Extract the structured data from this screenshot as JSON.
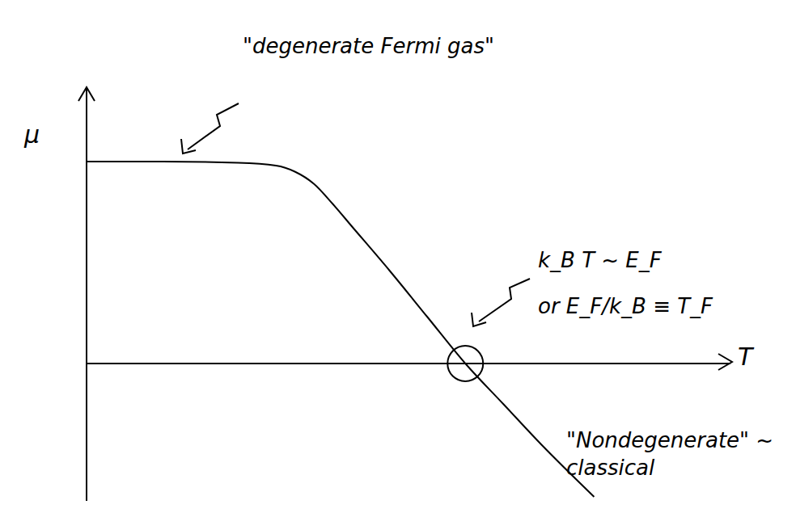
{
  "chart_data": {
    "type": "line",
    "x_label": "T",
    "y_label": "μ",
    "x": [
      0,
      2,
      4,
      5,
      5.5,
      6,
      6.5,
      7,
      8,
      9,
      10,
      11,
      12,
      13.4
    ],
    "values": [
      5,
      5,
      4.97,
      4.9,
      4.75,
      4.45,
      3.95,
      3.4,
      2.3,
      1.15,
      0,
      -1.0,
      -2.0,
      -3.3
    ],
    "xlim": [
      0,
      17
    ],
    "ylim": [
      -3.4,
      6.8
    ],
    "xticks": [],
    "yticks": [],
    "tick_labels": false,
    "grid": false,
    "color": "#000000",
    "line_style": "solid",
    "annotations": [
      "\"degenerate Fermi gas\"",
      "k_B T ~ E_F",
      "or E_F/k_B ≡ T_F",
      "\"Nondegenerate\" ~ classical"
    ]
  }
}
